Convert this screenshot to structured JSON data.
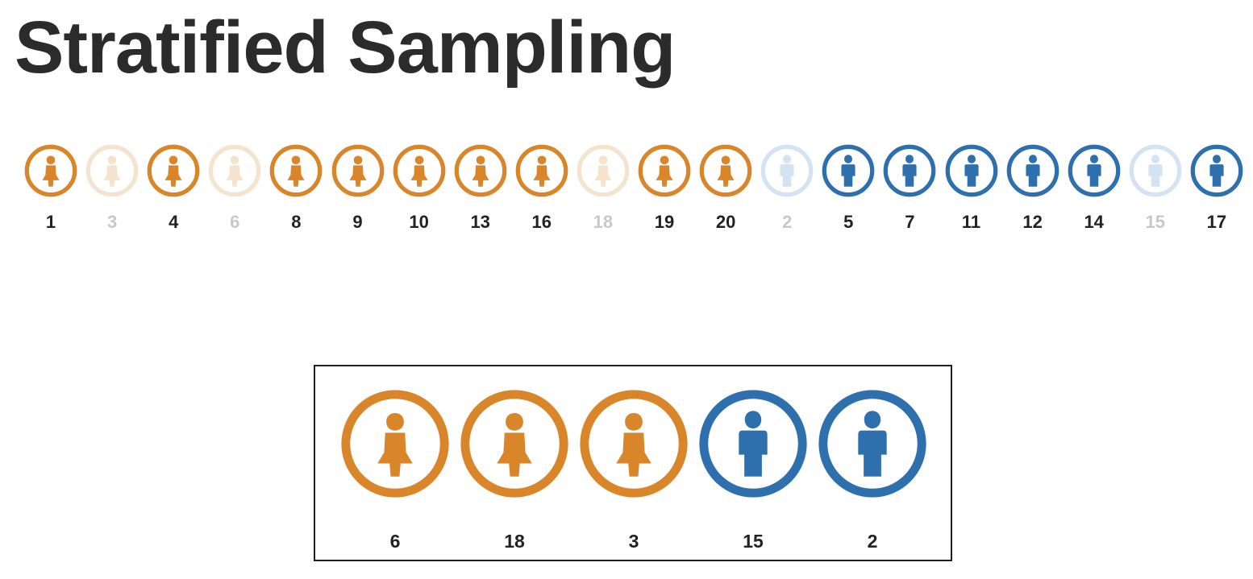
{
  "title": "Stratified Sampling",
  "colors": {
    "female": "#d9862a",
    "male": "#2e6fad",
    "female_faded": "#f4e3cf",
    "male_faded": "#d4e3f1",
    "number_text": "#222222",
    "number_faded": "#c8c8c8"
  },
  "icons": {
    "female": "female-person-icon",
    "male": "male-person-icon"
  },
  "population": [
    {
      "id": "1",
      "group": "female",
      "selected": false
    },
    {
      "id": "3",
      "group": "female",
      "selected": true
    },
    {
      "id": "4",
      "group": "female",
      "selected": false
    },
    {
      "id": "6",
      "group": "female",
      "selected": true
    },
    {
      "id": "8",
      "group": "female",
      "selected": false
    },
    {
      "id": "9",
      "group": "female",
      "selected": false
    },
    {
      "id": "10",
      "group": "female",
      "selected": false
    },
    {
      "id": "13",
      "group": "female",
      "selected": false
    },
    {
      "id": "16",
      "group": "female",
      "selected": false
    },
    {
      "id": "18",
      "group": "female",
      "selected": true
    },
    {
      "id": "19",
      "group": "female",
      "selected": false
    },
    {
      "id": "20",
      "group": "female",
      "selected": false
    },
    {
      "id": "2",
      "group": "male",
      "selected": true
    },
    {
      "id": "5",
      "group": "male",
      "selected": false
    },
    {
      "id": "7",
      "group": "male",
      "selected": false
    },
    {
      "id": "11",
      "group": "male",
      "selected": false
    },
    {
      "id": "12",
      "group": "male",
      "selected": false
    },
    {
      "id": "14",
      "group": "male",
      "selected": false
    },
    {
      "id": "15",
      "group": "male",
      "selected": true
    },
    {
      "id": "17",
      "group": "male",
      "selected": false
    }
  ],
  "sample": [
    {
      "id": "6",
      "group": "female"
    },
    {
      "id": "18",
      "group": "female"
    },
    {
      "id": "3",
      "group": "female"
    },
    {
      "id": "15",
      "group": "male"
    },
    {
      "id": "2",
      "group": "male"
    }
  ]
}
